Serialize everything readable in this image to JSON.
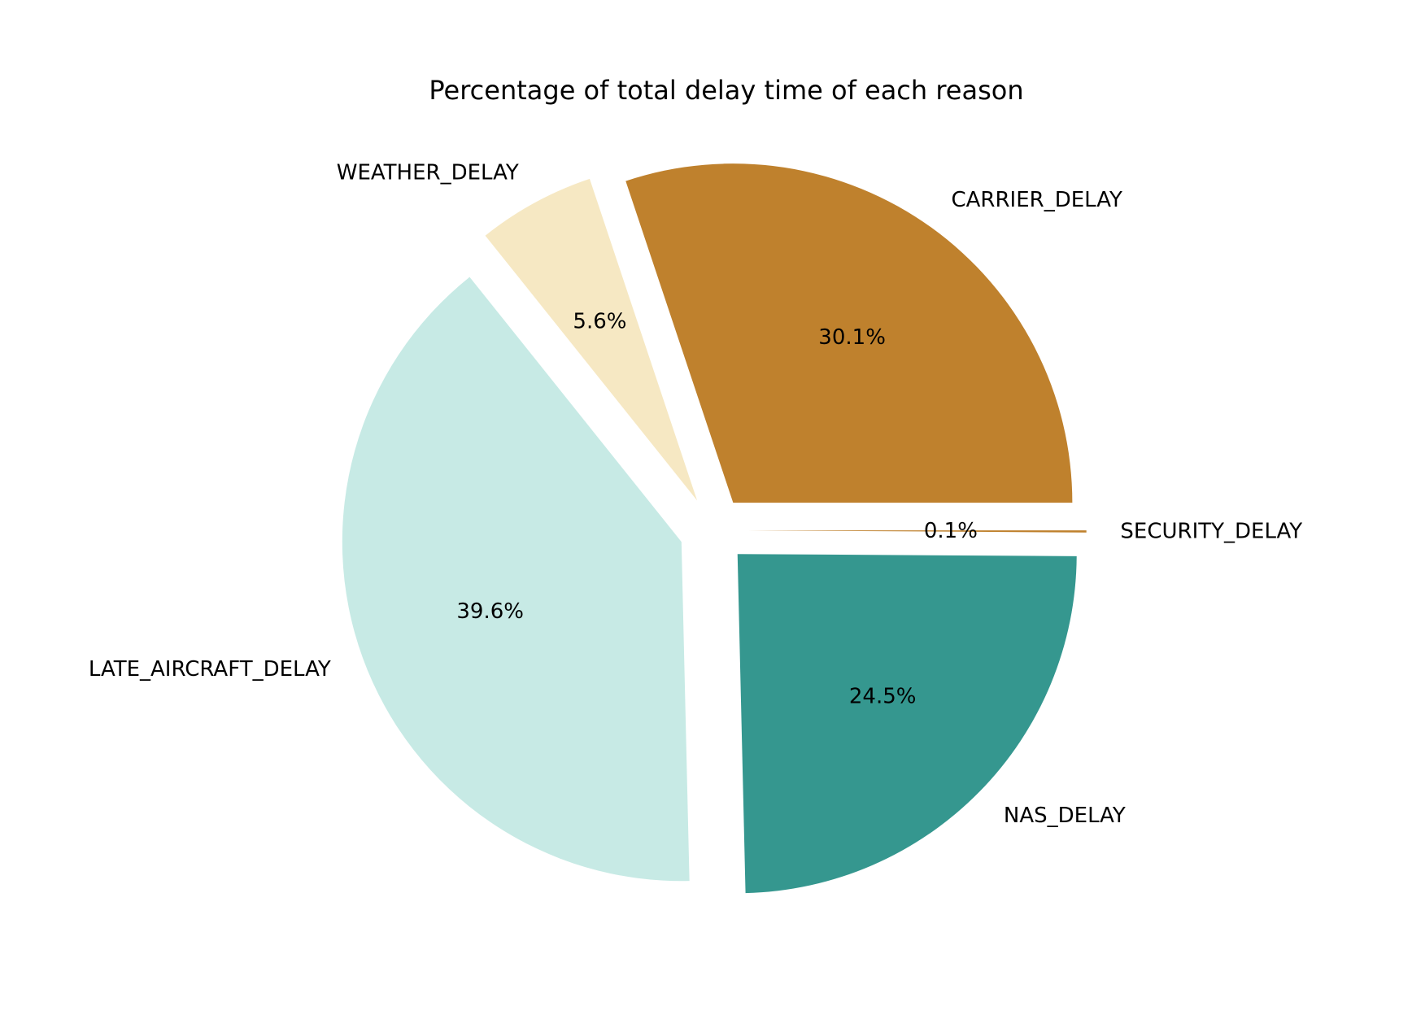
{
  "chart_data": {
    "type": "pie",
    "title": "Percentage of total delay time of each reason",
    "start_angle_deg": 0,
    "direction": "counterclockwise",
    "slices": [
      {
        "label": "CARRIER_DELAY",
        "value": 30.1,
        "pct_label": "30.1%",
        "color": "#bf812d",
        "exploded": true
      },
      {
        "label": "WEATHER_DELAY",
        "value": 5.6,
        "pct_label": "5.6%",
        "color": "#f6e8c3",
        "exploded": true
      },
      {
        "label": "LATE_AIRCRAFT_DELAY",
        "value": 39.6,
        "pct_label": "39.6%",
        "color": "#c7eae5",
        "exploded": true
      },
      {
        "label": "NAS_DELAY",
        "value": 24.5,
        "pct_label": "24.5%",
        "color": "#35978f",
        "exploded": true
      },
      {
        "label": "SECURITY_DELAY",
        "value": 0.1,
        "pct_label": "0.1%",
        "color": "#bf812d",
        "exploded": true
      }
    ]
  }
}
